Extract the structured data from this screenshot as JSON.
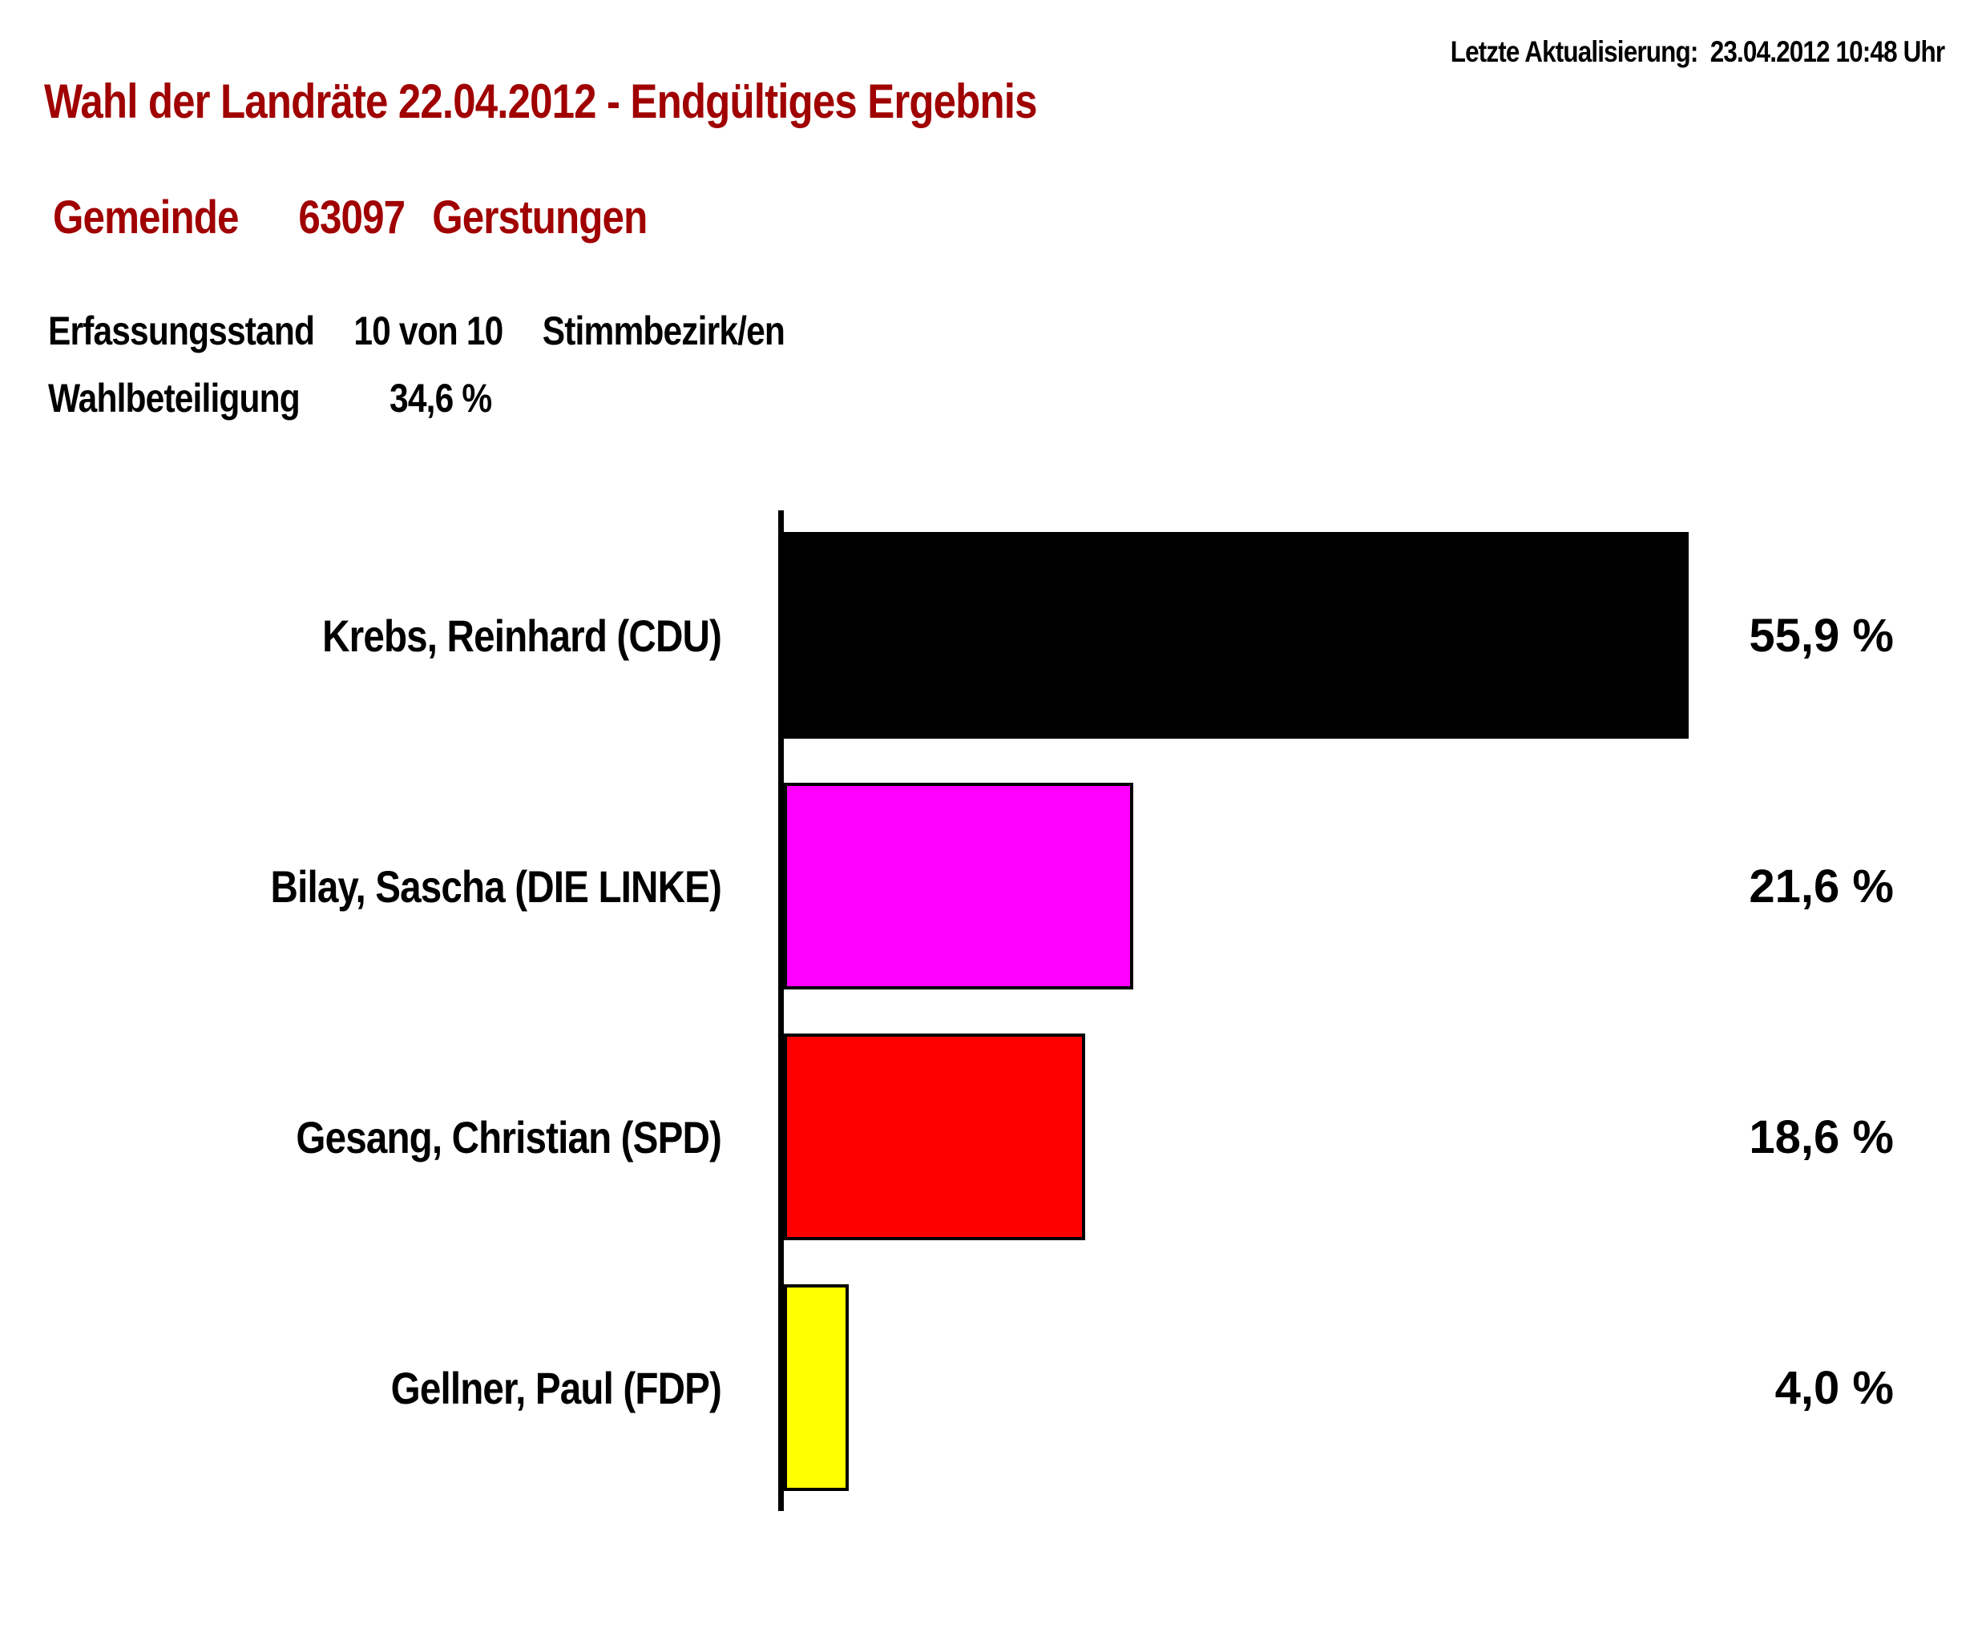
{
  "colors": {
    "accent": "#a00000",
    "text": "#000000",
    "background": "#ffffff",
    "axis": "#000000"
  },
  "header": {
    "last_update_label": "Letzte Aktualisierung:",
    "last_update_value": "23.04.2012 10:48 Uhr",
    "title": "Wahl der Landräte 22.04.2012 - Endgültiges Ergebnis",
    "region_label": "Gemeinde",
    "region_code": "63097",
    "region_name": "Gerstungen",
    "status_label": "Erfassungsstand",
    "status_value": "10 von 10",
    "status_unit": "Stimmbezirk/en",
    "turnout_label": "Wahlbeteiligung",
    "turnout_value": "34,6 %"
  },
  "chart_data": {
    "type": "bar",
    "orientation": "horizontal",
    "title": "",
    "xlabel": "",
    "ylabel": "",
    "xlim": [
      0,
      60
    ],
    "grid": false,
    "legend": "none",
    "categories": [
      "Krebs, Reinhard (CDU)",
      "Bilay, Sascha (DIE LINKE)",
      "Gesang, Christian (SPD)",
      "Gellner, Paul (FDP)"
    ],
    "values": [
      55.9,
      21.6,
      18.6,
      4.0
    ],
    "value_labels": [
      "55,9 %",
      "21,6 %",
      "18,6 %",
      "4,0 %"
    ],
    "bar_colors": [
      "#000000",
      "#ff00ff",
      "#ff0000",
      "#ffff00"
    ]
  }
}
